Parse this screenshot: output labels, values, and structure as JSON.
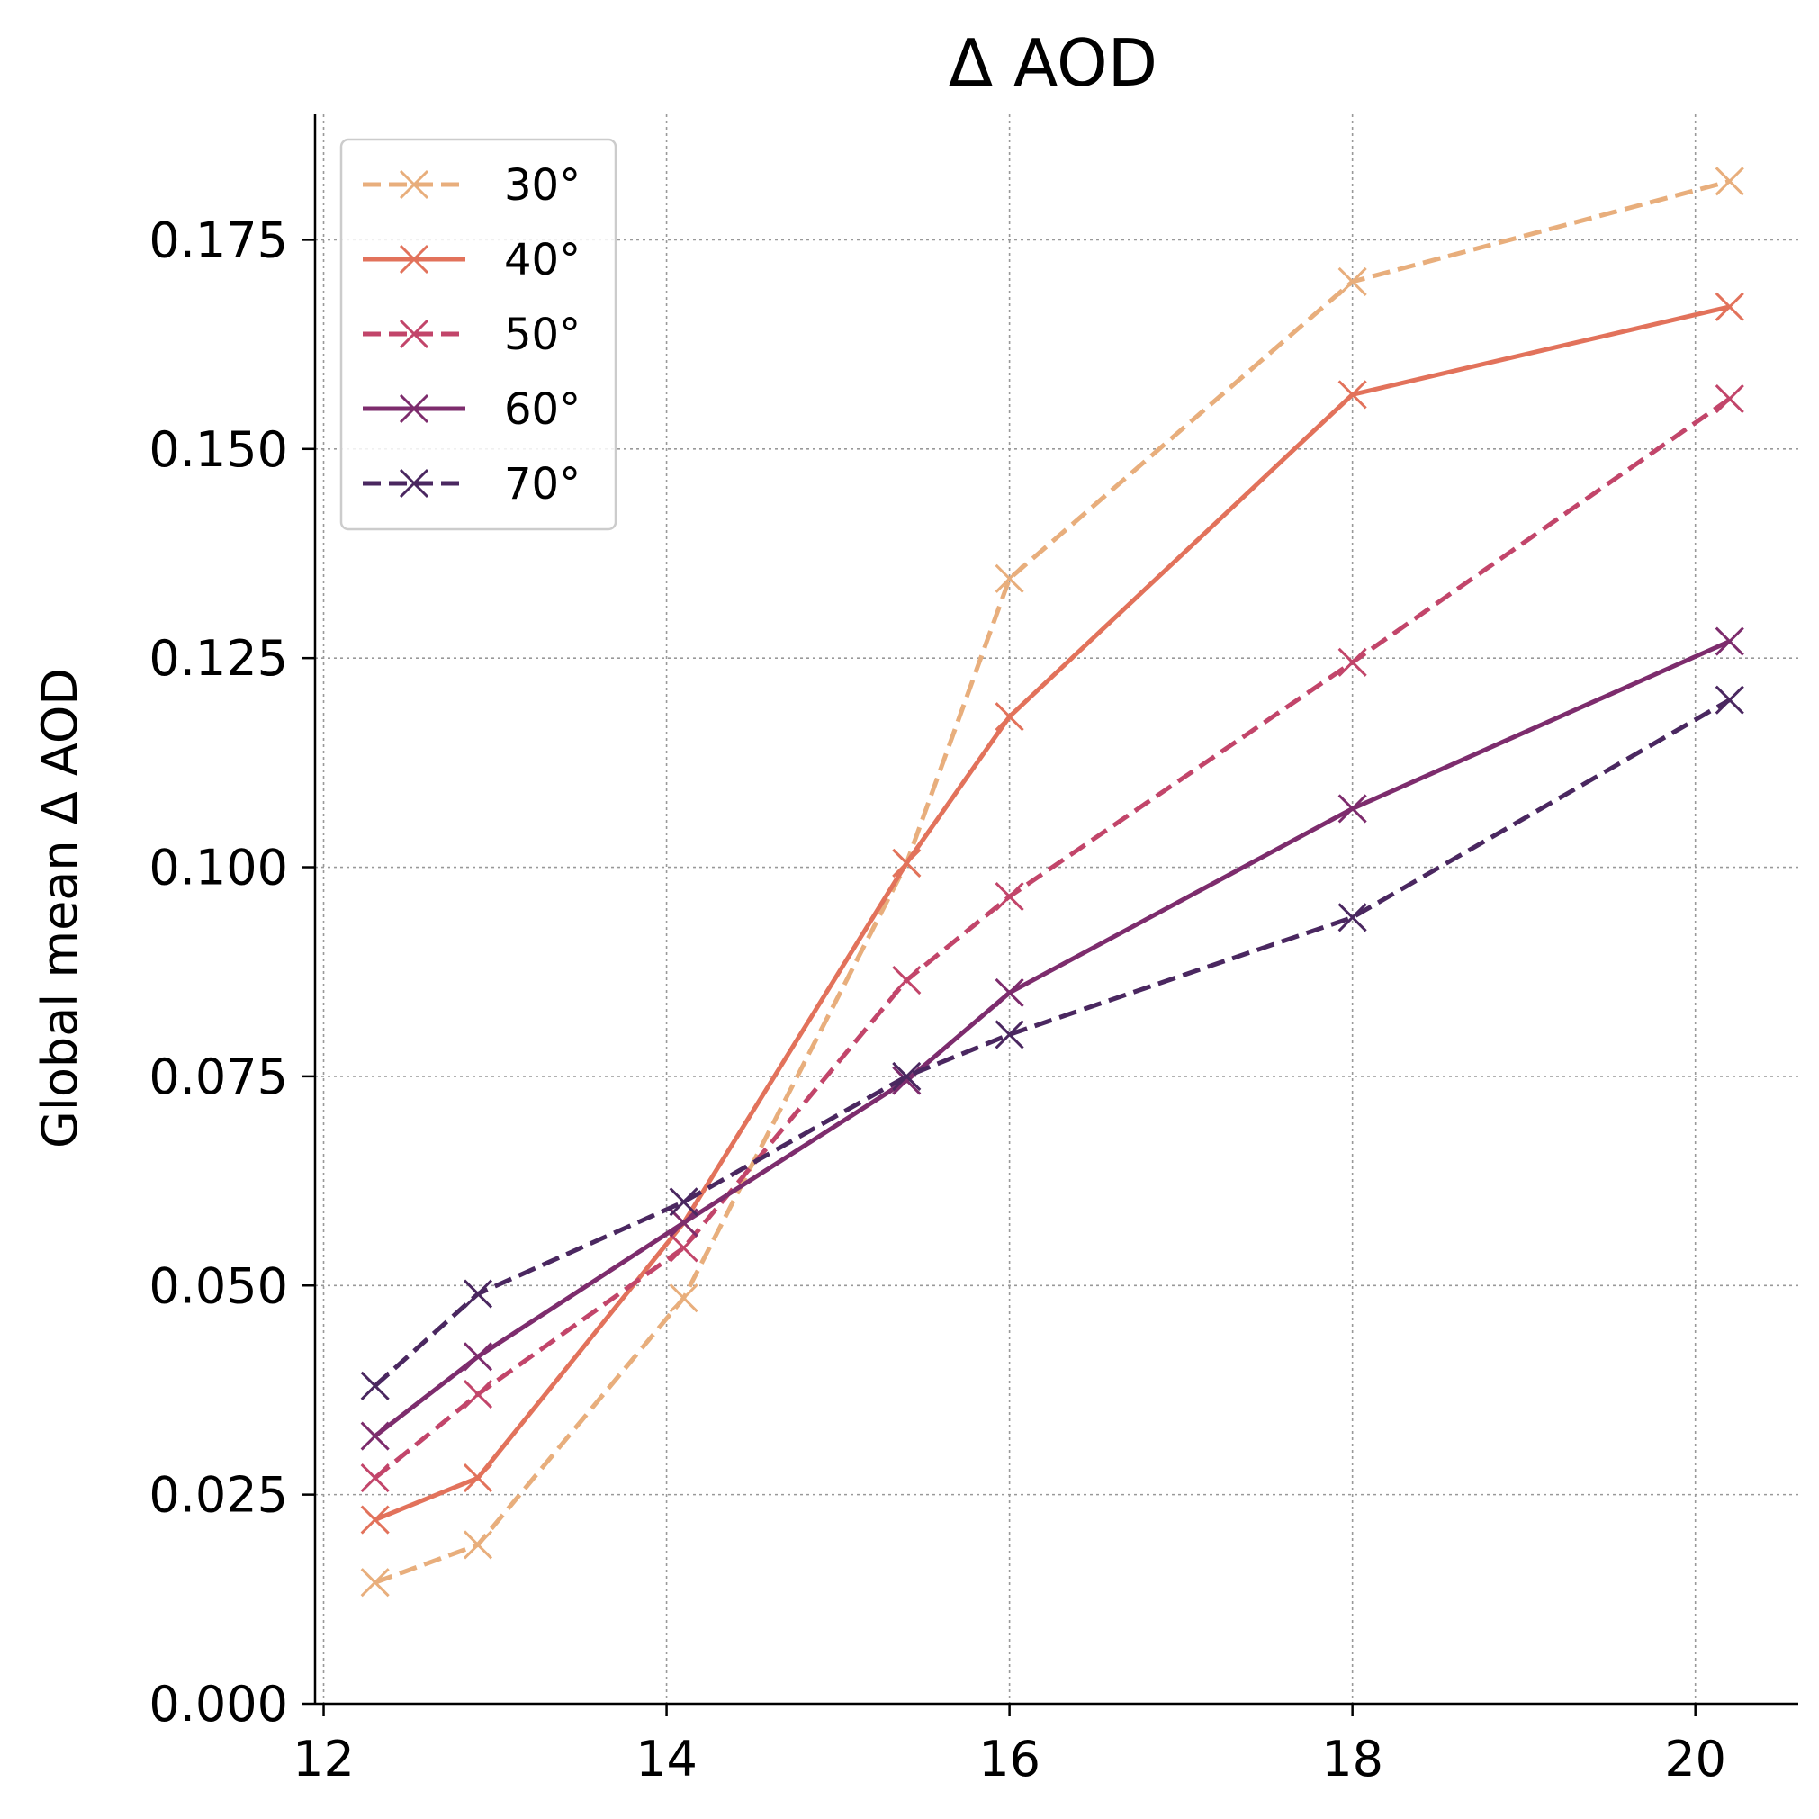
{
  "chart_data": {
    "type": "line",
    "title": "Δ AOD",
    "xlabel": "",
    "ylabel": "Global mean Δ AOD",
    "xlim": [
      11.95,
      20.6
    ],
    "ylim": [
      0.0,
      0.19
    ],
    "xticks": [
      "12",
      "14",
      "16",
      "18",
      "20"
    ],
    "xtick_values": [
      12,
      14,
      16,
      18,
      20
    ],
    "yticks": [
      "0.000",
      "0.025",
      "0.050",
      "0.075",
      "0.100",
      "0.125",
      "0.150",
      "0.175"
    ],
    "ytick_values": [
      0.0,
      0.025,
      0.05,
      0.075,
      0.1,
      0.125,
      0.15,
      0.175
    ],
    "grid": true,
    "legend_position": "top-left",
    "x": [
      12.3,
      12.9,
      14.1,
      15.4,
      16.0,
      18.0,
      20.2
    ],
    "series": [
      {
        "name": "30°",
        "color": "#e8ae7c",
        "dash": "dashed",
        "values": [
          0.0145,
          0.019,
          0.0485,
          0.1005,
          0.1345,
          0.17,
          0.182
        ]
      },
      {
        "name": "40°",
        "color": "#e2725b",
        "dash": "solid",
        "values": [
          0.022,
          0.027,
          0.0575,
          0.1005,
          0.118,
          0.1565,
          0.167
        ]
      },
      {
        "name": "50°",
        "color": "#c2456a",
        "dash": "dashed",
        "values": [
          0.027,
          0.037,
          0.0545,
          0.0865,
          0.0965,
          0.1245,
          0.156
        ]
      },
      {
        "name": "60°",
        "color": "#7d2c6d",
        "dash": "solid",
        "values": [
          0.032,
          0.0415,
          0.0575,
          0.0745,
          0.085,
          0.107,
          0.127
        ]
      },
      {
        "name": "70°",
        "color": "#4a2760",
        "dash": "dashed",
        "values": [
          0.038,
          0.049,
          0.06,
          0.075,
          0.08,
          0.094,
          0.12
        ]
      }
    ]
  }
}
